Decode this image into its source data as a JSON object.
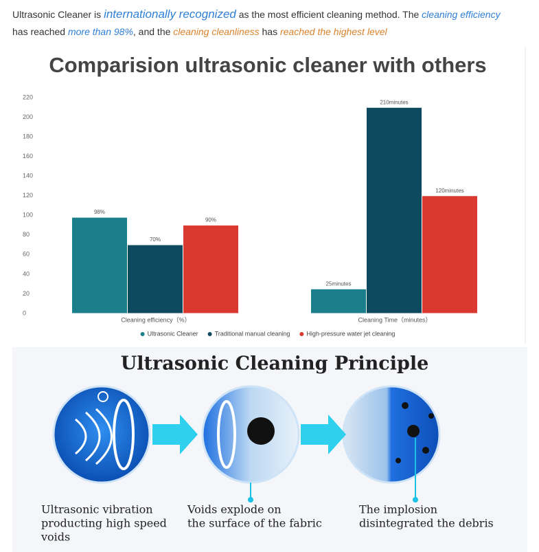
{
  "paragraph": {
    "segments": [
      "Ultrasonic Cleaner is ",
      "internationally recognized",
      " as the most efficient cleaning method. The ",
      "cleaning efficiency",
      "has reached ",
      "more than 98%",
      ", and the ",
      "cleaning cleanliness",
      " has ",
      "reached the highest level"
    ]
  },
  "chart_data": {
    "type": "bar",
    "title": "Comparision ultrasonic cleaner with others",
    "categories": [
      "Cleaning efficiency（%）",
      "Cleaning Time（minutes）"
    ],
    "series": [
      {
        "name": "Ultrasonic Cleaner",
        "color": "#1b7f8b",
        "values": [
          98,
          25
        ],
        "value_labels": [
          "98%",
          "25minutes"
        ]
      },
      {
        "name": "Traditional manual cleaning",
        "color": "#0e4a5f",
        "values": [
          70,
          210
        ],
        "value_labels": [
          "70%",
          "210minutes"
        ]
      },
      {
        "name": "High-pressure water jet cleaning",
        "color": "#d9392f",
        "values": [
          90,
          120
        ],
        "value_labels": [
          "90%",
          "120minutes"
        ]
      }
    ],
    "ylim": [
      0,
      220
    ],
    "yticks": [
      0,
      20,
      40,
      60,
      80,
      100,
      120,
      140,
      160,
      180,
      200,
      220
    ],
    "legend": "bottom"
  },
  "diagram": {
    "title": "Ultrasonic Cleaning Principle",
    "steps": [
      {
        "lines": [
          "Ultrasonic vibration",
          "producting high speed",
          "voids"
        ]
      },
      {
        "lines": [
          "Voids explode on",
          "the surface of the fabric"
        ]
      },
      {
        "lines": [
          "The implosion",
          "disintegrated the debris"
        ]
      }
    ]
  }
}
